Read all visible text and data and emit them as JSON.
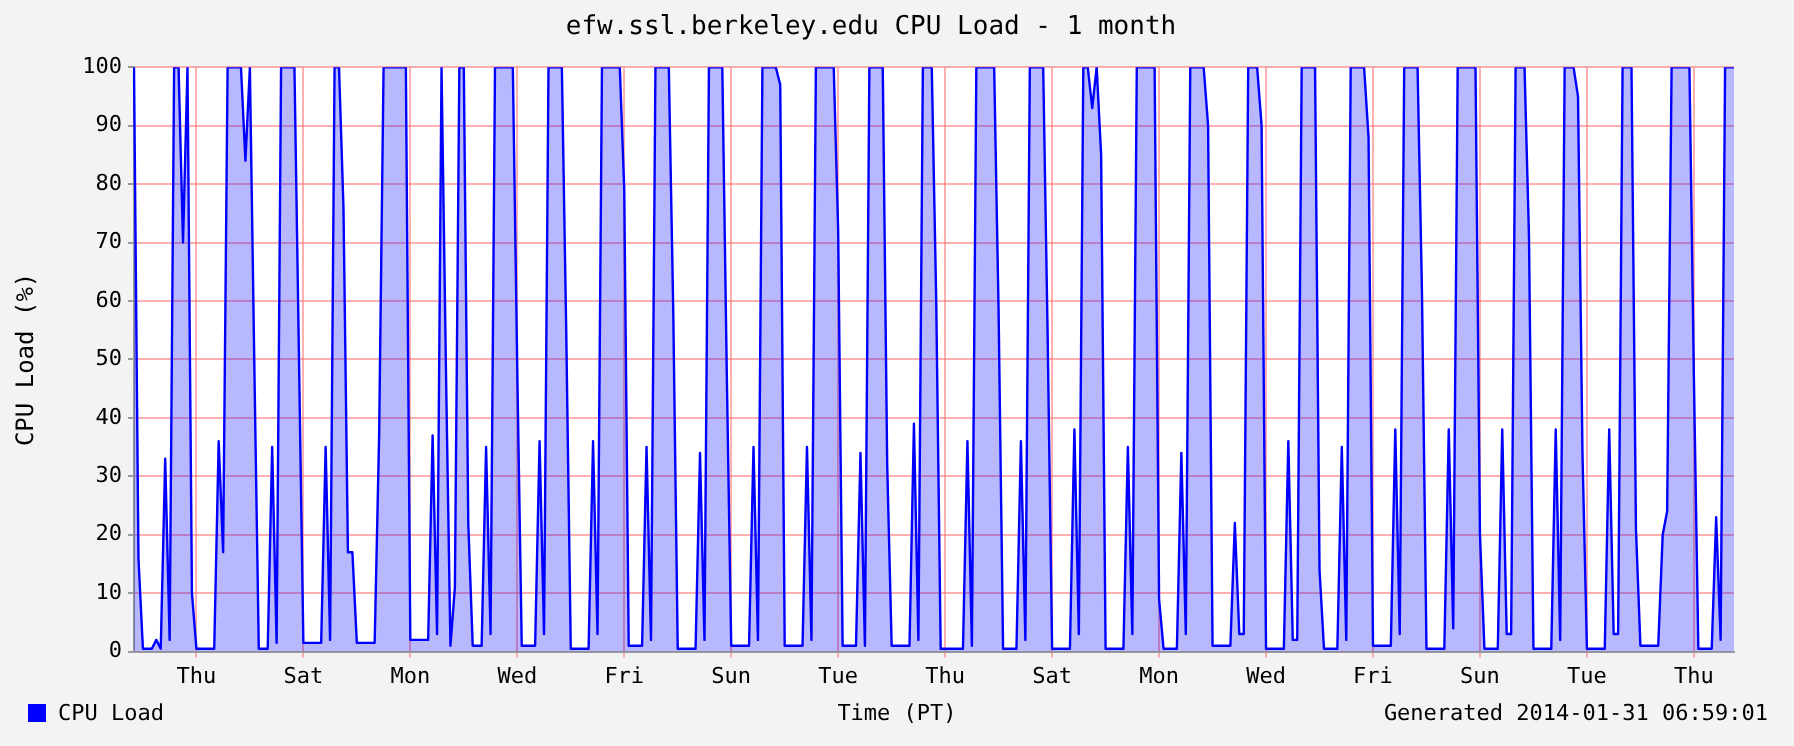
{
  "chart_data": {
    "type": "area",
    "title": "efw.ssl.berkeley.edu CPU Load - 1 month",
    "xlabel": "Time (PT)",
    "ylabel": "CPU Load (%)",
    "annotations": [
      "Generated 2014-01-31 06:59:01"
    ],
    "categories": [
      null,
      null,
      null,
      null,
      null,
      null,
      null,
      null,
      null,
      null,
      null,
      null,
      null,
      null,
      "Thu",
      null,
      null,
      null,
      null,
      null,
      null,
      null,
      null,
      null,
      null,
      null,
      null,
      null,
      null,
      null,
      null,
      null,
      null,
      null,
      null,
      null,
      null,
      null,
      "Sat",
      null,
      null,
      null,
      null,
      null,
      null,
      null,
      null,
      null,
      null,
      null,
      null,
      null,
      null,
      null,
      null,
      null,
      null,
      null,
      null,
      null,
      null,
      null,
      "Mon",
      null,
      null,
      null,
      null,
      null,
      null,
      null,
      null,
      null,
      null,
      null,
      null,
      null,
      null,
      null,
      null,
      null,
      null,
      null,
      null,
      null,
      null,
      null,
      "Wed",
      null,
      null,
      null,
      null,
      null,
      null,
      null,
      null,
      null,
      null,
      null,
      null,
      null,
      null,
      null,
      null,
      null,
      null,
      null,
      null,
      null,
      null,
      null,
      "Fri",
      null,
      null,
      null,
      null,
      null,
      null,
      null,
      null,
      null,
      null,
      null,
      null,
      null,
      null,
      null,
      null,
      null,
      null,
      null,
      null,
      null,
      null,
      null,
      "Sun",
      null,
      null,
      null,
      null,
      null,
      null,
      null,
      null,
      null,
      null,
      null,
      null,
      null,
      null,
      null,
      null,
      null,
      null,
      null,
      null,
      null,
      null,
      null,
      "Tue",
      null,
      null,
      null,
      null,
      null,
      null,
      null,
      null,
      null,
      null,
      null,
      null,
      null,
      null,
      null,
      null,
      null,
      null,
      null,
      null,
      null,
      null,
      null,
      "Thu",
      null,
      null,
      null,
      null,
      null,
      null,
      null,
      null,
      null,
      null,
      null,
      null,
      null,
      null,
      null,
      null,
      null,
      null,
      null,
      null,
      null,
      null,
      null,
      "Sat",
      null,
      null,
      null,
      null,
      null,
      null,
      null,
      null,
      null,
      null,
      null,
      null,
      null,
      null,
      null,
      null,
      null,
      null,
      null,
      null,
      null,
      null,
      null,
      "Mon",
      null,
      null,
      null,
      null,
      null,
      null,
      null,
      null,
      null,
      null,
      null,
      null,
      null,
      null,
      null,
      null,
      null,
      null,
      null,
      null,
      null,
      null,
      null,
      "Wed",
      null,
      null,
      null,
      null,
      null,
      null,
      null,
      null,
      null,
      null,
      null,
      null,
      null,
      null,
      null,
      null,
      null,
      null,
      null,
      null,
      null,
      null,
      null,
      "Fri",
      null,
      null,
      null,
      null,
      null,
      null,
      null,
      null,
      null,
      null,
      null,
      null,
      null,
      null,
      null,
      null,
      null,
      null,
      null,
      null,
      null,
      null,
      null,
      "Sun",
      null,
      null,
      null,
      null,
      null,
      null,
      null,
      null,
      null,
      null,
      null,
      null,
      null,
      null,
      null,
      null,
      null,
      null,
      null,
      null,
      null,
      null,
      null,
      "Tue",
      null,
      null,
      null,
      null,
      null,
      null,
      null,
      null,
      null,
      null,
      null,
      null,
      null,
      null,
      null,
      null,
      null,
      null,
      null,
      null,
      null,
      null,
      null,
      "Thu",
      null,
      null,
      null,
      null,
      null,
      null,
      null,
      null,
      null
    ],
    "series": [
      {
        "name": "CPU Load",
        "color": "#0000ff",
        "values": [
          100,
          16,
          0.5,
          0.5,
          0.5,
          2,
          0.5,
          33,
          2,
          100,
          100,
          70,
          100,
          10,
          0.5,
          0.5,
          0.5,
          0.5,
          0.5,
          36,
          17,
          100,
          100,
          100,
          100,
          84,
          100,
          49,
          0.5,
          0.5,
          0.5,
          35,
          1.5,
          100,
          100,
          100,
          100,
          51,
          1.5,
          1.5,
          1.5,
          1.5,
          1.5,
          35,
          2,
          100,
          100,
          76,
          17,
          17,
          1.5,
          1.5,
          1.5,
          1.5,
          1.5,
          37,
          100,
          100,
          100,
          100,
          100,
          100,
          2,
          2,
          2,
          2,
          2,
          37,
          3,
          100,
          48,
          1,
          11,
          100,
          100,
          22,
          1,
          1,
          1,
          35,
          3,
          100,
          100,
          100,
          100,
          100,
          48,
          1,
          1,
          1,
          1,
          36,
          3,
          100,
          100,
          100,
          100,
          54,
          0.5,
          0.5,
          0.5,
          0.5,
          0.5,
          36,
          3,
          100,
          100,
          100,
          100,
          100,
          79,
          1,
          1,
          1,
          1,
          35,
          2,
          100,
          100,
          100,
          100,
          58,
          0.5,
          0.5,
          0.5,
          0.5,
          0.5,
          34,
          2,
          100,
          100,
          100,
          100,
          48,
          1,
          1,
          1,
          1,
          1,
          35,
          2,
          100,
          100,
          100,
          100,
          97,
          1,
          1,
          1,
          1,
          1,
          35,
          2,
          100,
          100,
          100,
          100,
          100,
          72,
          1,
          1,
          1,
          1,
          34,
          1,
          100,
          100,
          100,
          100,
          32,
          1,
          1,
          1,
          1,
          1,
          39,
          2,
          100,
          100,
          100,
          60,
          0.5,
          0.5,
          0.5,
          0.5,
          0.5,
          0.5,
          36,
          1,
          100,
          100,
          100,
          100,
          100,
          58,
          0.5,
          0.5,
          0.5,
          0.5,
          36,
          2,
          100,
          100,
          100,
          100,
          54,
          0.5,
          0.5,
          0.5,
          0.5,
          0.5,
          38,
          3,
          100,
          100,
          93,
          100,
          85,
          0.5,
          0.5,
          0.5,
          0.5,
          0.5,
          35,
          3,
          100,
          100,
          100,
          100,
          100,
          9,
          0.5,
          0.5,
          0.5,
          0.5,
          34,
          3,
          100,
          100,
          100,
          100,
          90,
          1,
          1,
          1,
          1,
          1,
          22,
          3,
          3,
          100,
          100,
          100,
          90,
          0.5,
          0.5,
          0.5,
          0.5,
          0.5,
          36,
          2,
          2,
          100,
          100,
          100,
          100,
          14,
          0.5,
          0.5,
          0.5,
          0.5,
          35,
          2,
          100,
          100,
          100,
          100,
          88,
          1,
          1,
          1,
          1,
          1,
          38,
          3,
          100,
          100,
          100,
          100,
          61,
          0.5,
          0.5,
          0.5,
          0.5,
          0.5,
          38,
          4,
          100,
          100,
          100,
          100,
          100,
          20,
          0.5,
          0.5,
          0.5,
          0.5,
          38,
          3,
          3,
          100,
          100,
          100,
          71,
          0.5,
          0.5,
          0.5,
          0.5,
          0.5,
          38,
          2,
          100,
          100,
          100,
          95,
          34,
          0.5,
          0.5,
          0.5,
          0.5,
          0.5,
          38,
          3,
          3,
          100,
          100,
          100,
          21,
          1,
          1,
          1,
          1,
          1,
          20,
          24,
          100,
          100,
          100,
          100,
          100,
          47,
          0.5,
          0.5,
          0.5,
          0.5,
          23,
          2,
          100,
          100,
          100
        ]
      }
    ],
    "ylim": [
      0,
      100
    ],
    "yticks": [
      0,
      10,
      20,
      30,
      40,
      50,
      60,
      70,
      80,
      90,
      100
    ],
    "grid": true,
    "legend": "bottom left",
    "marker": "none",
    "line_style": "solid"
  }
}
